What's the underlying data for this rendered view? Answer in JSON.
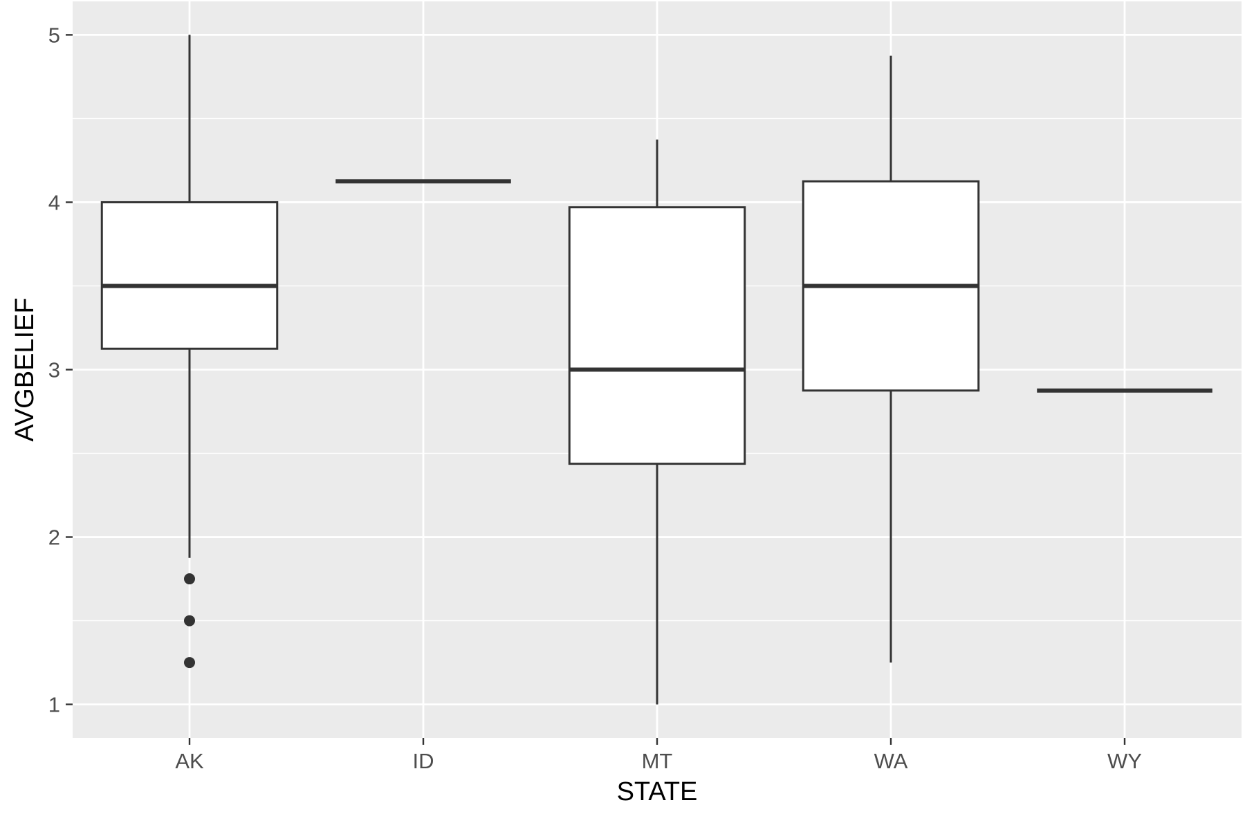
{
  "chart_data": {
    "type": "boxplot",
    "xlabel": "STATE",
    "ylabel": "AVGBELIEF",
    "categories": [
      "AK",
      "ID",
      "MT",
      "WA",
      "WY"
    ],
    "ylim": [
      0.8,
      5.2
    ],
    "y_ticks": [
      1,
      2,
      3,
      4,
      5
    ],
    "y_minor_ticks": [
      1.5,
      2.5,
      3.5,
      4.5
    ],
    "grid": true,
    "legend": "none",
    "boxes": [
      {
        "category": "AK",
        "min": 1.875,
        "q1": 3.125,
        "median": 3.5,
        "q3": 4.0,
        "max": 5.0,
        "outliers": [
          1.75,
          1.5,
          1.25
        ]
      },
      {
        "category": "ID",
        "min": 4.125,
        "q1": 4.125,
        "median": 4.125,
        "q3": 4.125,
        "max": 4.125,
        "outliers": []
      },
      {
        "category": "MT",
        "min": 1.0,
        "q1": 2.4375,
        "median": 3.0,
        "q3": 3.97,
        "max": 4.375,
        "outliers": []
      },
      {
        "category": "WA",
        "min": 1.25,
        "q1": 2.875,
        "median": 3.5,
        "q3": 4.125,
        "max": 4.875,
        "outliers": []
      },
      {
        "category": "WY",
        "min": 2.875,
        "q1": 2.875,
        "median": 2.875,
        "q3": 2.875,
        "max": 2.875,
        "outliers": []
      }
    ],
    "colors": {
      "panel_background": "#ebebeb",
      "grid": "#ffffff",
      "box_fill": "#ffffff",
      "box_line": "#333333",
      "outlier": "#333333",
      "tick_text": "#4d4d4d",
      "title_text": "#000000"
    }
  }
}
